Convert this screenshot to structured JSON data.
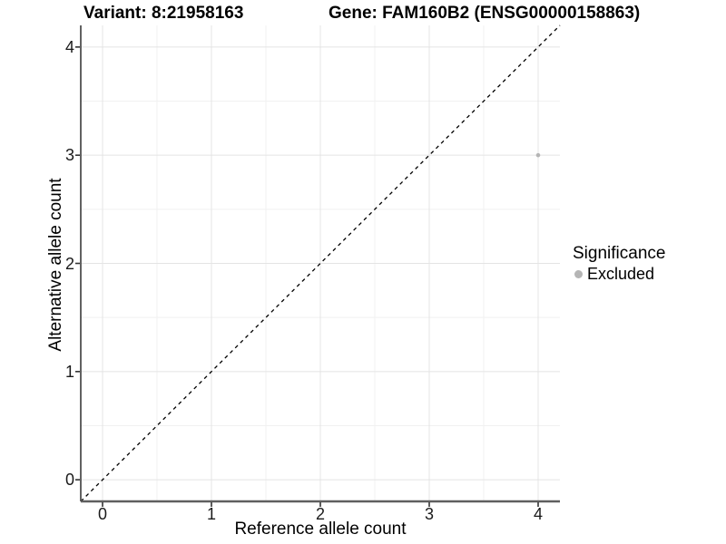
{
  "titles": {
    "variant": "Variant: 8:21958163",
    "gene": "Gene: FAM160B2 (ENSG00000158863)"
  },
  "chart_data": {
    "type": "scatter",
    "xlabel": "Reference allele count",
    "ylabel": "Alternative allele count",
    "xlim": [
      -0.2,
      4.2
    ],
    "ylim": [
      -0.2,
      4.2
    ],
    "xticks": [
      0,
      1,
      2,
      3,
      4
    ],
    "yticks": [
      0,
      1,
      2,
      3,
      4
    ],
    "minor_ticks_x": [
      0.5,
      1.5,
      2.5,
      3.5
    ],
    "minor_ticks_y": [
      0.5,
      1.5,
      2.5,
      3.5
    ],
    "grid": true,
    "points": [
      {
        "x": 4,
        "y": 3,
        "series": "Excluded"
      }
    ],
    "abline": {
      "slope": 1,
      "intercept": 0,
      "style": "dashed"
    },
    "legend": {
      "title": "Significance",
      "position": "right",
      "items": [
        {
          "label": "Excluded",
          "color": "#b5b5b5"
        }
      ]
    }
  },
  "colors": {
    "point": "#b5b5b5",
    "grid_major": "#e4e4e4",
    "grid_minor": "#f1f1f1",
    "axis_line_left": "#3a3a3a",
    "axis_line_bottom": "#5f5f5f",
    "tick_mark": "#333333",
    "abline": "#000000",
    "background": "#ffffff"
  }
}
